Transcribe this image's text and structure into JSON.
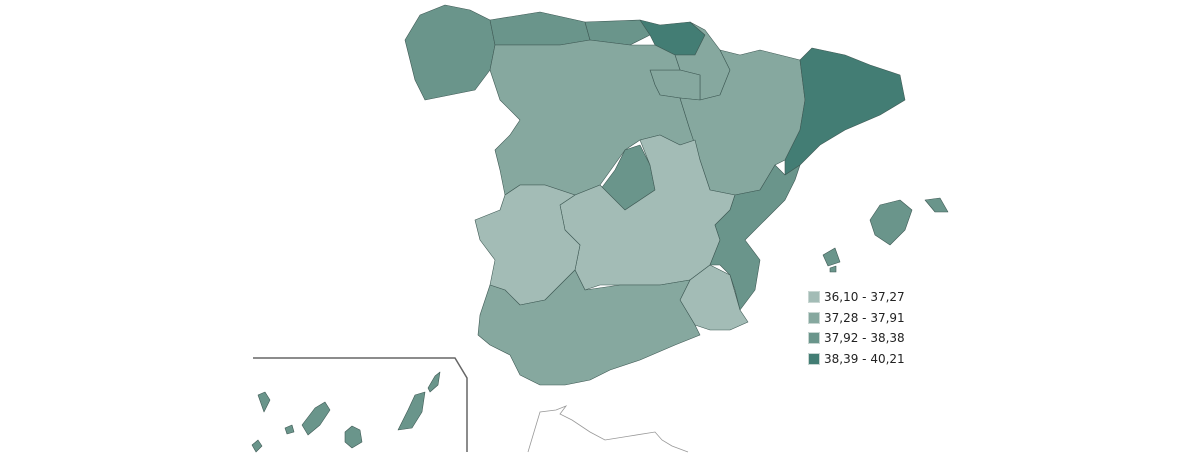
{
  "legend": {
    "classes": [
      {
        "label": "36,10 - 37,27",
        "color": "#a3bcb6"
      },
      {
        "label": "37,28 - 37,91",
        "color": "#86a89f"
      },
      {
        "label": "37,92 - 38,38",
        "color": "#6a958b"
      },
      {
        "label": "38,39 - 40,21",
        "color": "#437d74"
      }
    ]
  },
  "regions": [
    {
      "name": "Galicia",
      "class": 2
    },
    {
      "name": "Asturias",
      "class": 2
    },
    {
      "name": "Cantabria",
      "class": 2
    },
    {
      "name": "País Vasco",
      "class": 3
    },
    {
      "name": "Navarra",
      "class": 1
    },
    {
      "name": "La Rioja",
      "class": 1
    },
    {
      "name": "Castilla y León",
      "class": 1
    },
    {
      "name": "Aragón",
      "class": 1
    },
    {
      "name": "Cataluña",
      "class": 3
    },
    {
      "name": "Madrid",
      "class": 2
    },
    {
      "name": "Castilla-La Mancha",
      "class": 0
    },
    {
      "name": "Extremadura",
      "class": 0
    },
    {
      "name": "Comunidad Valenciana",
      "class": 2
    },
    {
      "name": "Murcia",
      "class": 0
    },
    {
      "name": "Andalucía",
      "class": 1
    },
    {
      "name": "Baleares",
      "class": 2
    },
    {
      "name": "Canarias",
      "class": 2
    }
  ]
}
